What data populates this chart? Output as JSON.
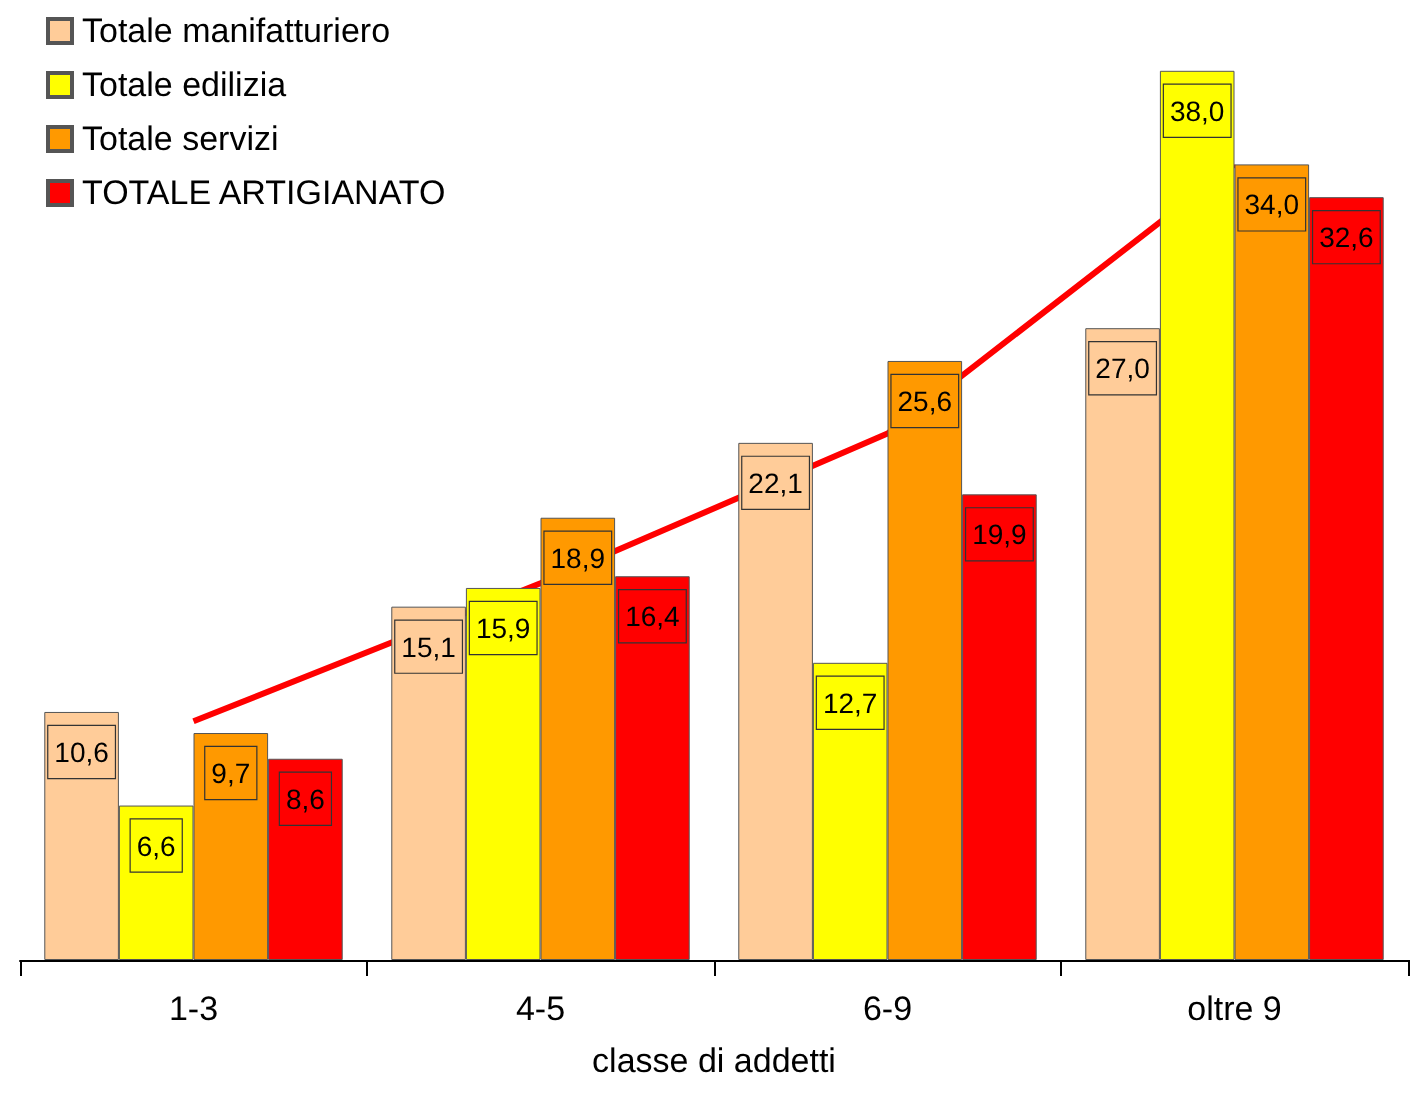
{
  "chart_data": {
    "type": "bar",
    "xlabel": "classe di addetti",
    "categories": [
      "1-3",
      "4-5",
      "6-9",
      "oltre 9"
    ],
    "series": [
      {
        "name": "Totale manifatturiero",
        "color": "#ffcc99",
        "values": [
          10.6,
          15.1,
          22.1,
          27.0
        ],
        "value_labels": [
          "10,6",
          "15,1",
          "22,1",
          "27,0"
        ]
      },
      {
        "name": "Totale edilizia",
        "color": "#ffff00",
        "values": [
          6.6,
          15.9,
          12.7,
          38.0
        ],
        "value_labels": [
          "6,6",
          "15,9",
          "12,7",
          "38,0"
        ]
      },
      {
        "name": "Totale servizi",
        "color": "#ff9900",
        "values": [
          9.7,
          18.9,
          25.6,
          34.0
        ],
        "value_labels": [
          "9,7",
          "18,9",
          "25,6",
          "34,0"
        ]
      },
      {
        "name": "TOTALE ARTIGIANATO",
        "color": "#ff0000",
        "values": [
          8.6,
          16.4,
          19.9,
          32.6
        ],
        "value_labels": [
          "8,6",
          "16,4",
          "19,9",
          "32,6"
        ]
      },
      {
        "type": "line",
        "color": "#ff0000",
        "values": [
          10.2,
          16.1,
          22.5,
          34.0
        ]
      }
    ],
    "legend": "top left",
    "marker": "none"
  }
}
